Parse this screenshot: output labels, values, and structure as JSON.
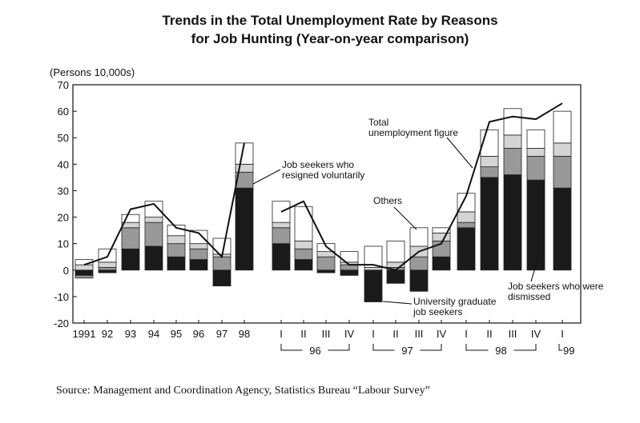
{
  "chart_data": {
    "type": "bar",
    "title_line1": "Trends in the Total Unemployment Rate by Reasons",
    "title_line2": "for Job Hunting (Year-on-year comparison)",
    "unit_label": "(Persons 10,000s)",
    "ylim": [
      -20,
      70
    ],
    "yticks": [
      70,
      60,
      50,
      40,
      30,
      20,
      10,
      0,
      -10,
      -20
    ],
    "categories": [
      "1991",
      "92",
      "93",
      "94",
      "95",
      "96",
      "97",
      "98",
      "I",
      "II",
      "III",
      "IV",
      "I",
      "II",
      "III",
      "IV",
      "I",
      "II",
      "III",
      "IV",
      "I"
    ],
    "year_groups": [
      {
        "label": "96",
        "from": 8,
        "to": 11
      },
      {
        "label": "97",
        "from": 12,
        "to": 15
      },
      {
        "label": "98",
        "from": 16,
        "to": 19
      },
      {
        "label": "99",
        "from": 20,
        "to": 20
      }
    ],
    "series": [
      {
        "name": "Job seekers who were dismissed",
        "color": "#1a1a1a",
        "values": [
          -2,
          -1,
          8,
          9,
          5,
          4,
          -6,
          31,
          10,
          4,
          -1,
          -2,
          -12,
          -5,
          -8,
          5,
          16,
          35,
          36,
          34,
          31
        ]
      },
      {
        "name": "Job seekers who resigned voluntarily",
        "color": "#999999",
        "values": [
          -1,
          1,
          8,
          9,
          5,
          4,
          5,
          6,
          6,
          4,
          5,
          2,
          0,
          1,
          5,
          6,
          2,
          4,
          10,
          9,
          12
        ]
      },
      {
        "name": "University graduate job seekers",
        "color": "#d4d4d4",
        "values": [
          2,
          2,
          2,
          2,
          3,
          2,
          1,
          3,
          2,
          3,
          2,
          1,
          1,
          2,
          4,
          3,
          4,
          4,
          5,
          3,
          5
        ]
      },
      {
        "name": "Others",
        "color": "#ffffff",
        "values": [
          2,
          5,
          3,
          6,
          4,
          5,
          6,
          8,
          8,
          13,
          3,
          4,
          8,
          8,
          7,
          2,
          7,
          10,
          10,
          7,
          12
        ]
      }
    ],
    "total_unemployment": [
      2,
      5,
      23,
      25,
      16,
      14,
      5,
      48,
      22,
      26,
      9,
      2,
      2,
      0,
      7,
      10,
      28,
      56,
      58,
      57,
      63
    ],
    "total_line_segments": [
      [
        0,
        7
      ],
      [
        8,
        20
      ]
    ],
    "annotations": {
      "total": [
        "Total",
        "unemployment figure"
      ],
      "resigned": [
        "Job seekers who",
        "resigned voluntarily"
      ],
      "others": [
        "Others"
      ],
      "university": [
        "University graduate",
        "job seekers"
      ],
      "dismissed": [
        "Job seekers who were",
        "dismissed"
      ]
    },
    "grid": false
  },
  "source": "Source: Management and Coordination Agency, Statistics Bureau “Labour Survey”"
}
